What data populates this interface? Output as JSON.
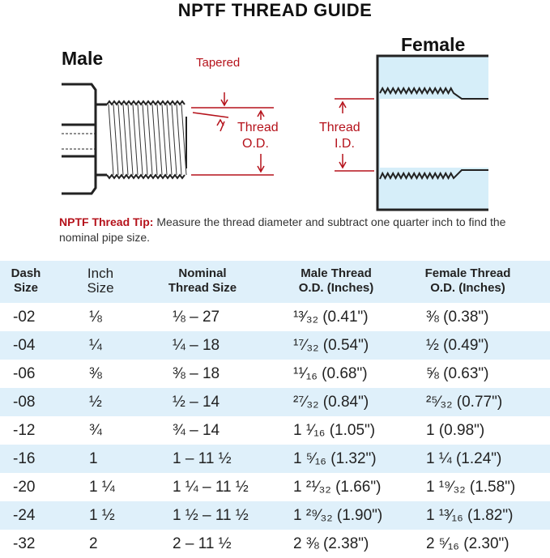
{
  "title": "NPTF THREAD GUIDE",
  "diagram": {
    "male_label": "Male",
    "female_label": "Female",
    "tapered_label": "Tapered",
    "thread_od_label": [
      "Thread",
      "O.D."
    ],
    "thread_id_label": [
      "Thread",
      "I.D."
    ],
    "accent_color": "#b5121b",
    "female_fill": "#d6eef9"
  },
  "tip": {
    "label": "NPTF Thread Tip:",
    "text": "Measure the thread diameter and subtract one quarter inch to find the nominal pipe size."
  },
  "table": {
    "headers": [
      [
        "Dash",
        "Size"
      ],
      [
        "Inch",
        "Size"
      ],
      [
        "Nominal",
        "Thread Size"
      ],
      [
        "Male Thread",
        "O.D. (Inches)"
      ],
      [
        "Female Thread",
        "O.D. (Inches)"
      ]
    ],
    "rows": [
      [
        "-02",
        "⅛",
        "⅛ – 27",
        "¹³⁄₃₂ (0.41\")",
        "⅜ (0.38\")"
      ],
      [
        "-04",
        "¼",
        "¼ – 18",
        "¹⁷⁄₃₂ (0.54\")",
        "½ (0.49\")"
      ],
      [
        "-06",
        "⅜",
        "⅜ – 18",
        "¹¹⁄₁₆ (0.68\")",
        "⅝ (0.63\")"
      ],
      [
        "-08",
        "½",
        "½ – 14",
        "²⁷⁄₃₂ (0.84\")",
        "²⁵⁄₃₂ (0.77\")"
      ],
      [
        "-12",
        "¾",
        "¾ – 14",
        "1 ¹⁄₁₆ (1.05\")",
        "1 (0.98\")"
      ],
      [
        "-16",
        "1",
        "1 – 11 ½",
        "1 ⁵⁄₁₆ (1.32\")",
        "1 ¼ (1.24\")"
      ],
      [
        "-20",
        "1 ¼",
        "1 ¼ – 11 ½",
        "1 ²¹⁄₃₂ (1.66\")",
        "1 ¹⁹⁄₃₂ (1.58\")"
      ],
      [
        "-24",
        "1 ½",
        "1 ½ – 11 ½",
        "1 ²⁹⁄₃₂ (1.90\")",
        "1 ¹³⁄₁₆ (1.82\")"
      ],
      [
        "-32",
        "2",
        "2 – 11 ½",
        "2 ⅜ (2.38\")",
        "2 ⁵⁄₁₆ (2.30\")"
      ]
    ]
  }
}
